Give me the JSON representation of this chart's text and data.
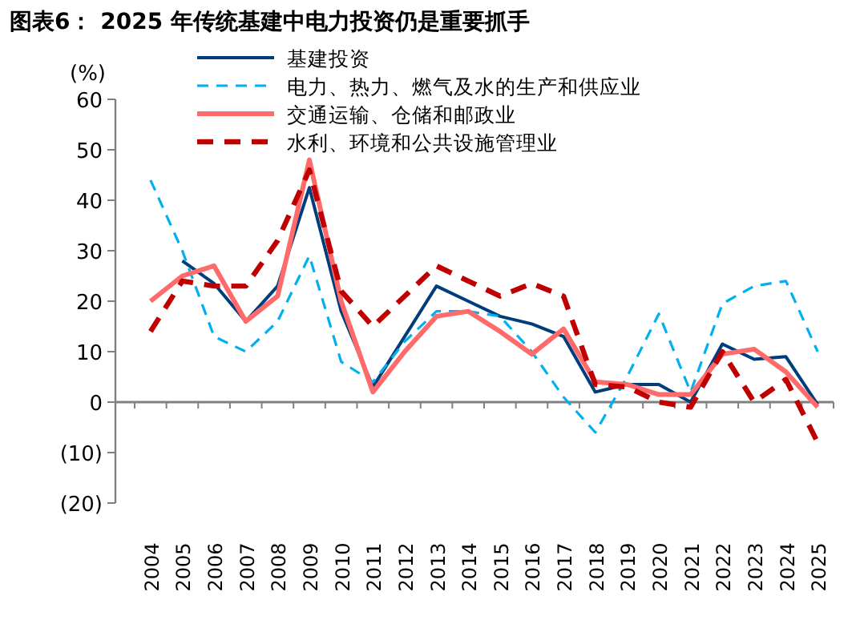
{
  "chart_data": {
    "type": "line",
    "title": "图表6： 2025 年传统基建中电力投资仍是重要抓手",
    "ylabel": "(%)",
    "categories": [
      "2004",
      "2005",
      "2006",
      "2007",
      "2008",
      "2009",
      "2010",
      "2011",
      "2012",
      "2013",
      "2014",
      "2015",
      "2016",
      "2017",
      "2018",
      "2019",
      "2020",
      "2021",
      "2022",
      "2023",
      "2024",
      "2025"
    ],
    "ylim": [
      -20,
      60
    ],
    "yticks": [
      {
        "value": -20,
        "label": "(20)"
      },
      {
        "value": -10,
        "label": "(10)"
      },
      0,
      10,
      20,
      30,
      40,
      50,
      60
    ],
    "legend": "top",
    "series": [
      {
        "name": "基建投资",
        "color": "#003d7c",
        "line_style": "solid",
        "values": [
          null,
          28,
          23.5,
          16,
          23,
          42.5,
          18,
          3,
          13,
          23,
          20,
          17,
          15.5,
          13,
          2,
          3.5,
          3.5,
          0,
          11.5,
          8.5,
          9,
          -0.5
        ]
      },
      {
        "name": "电力、热力、燃气及水的生产和供应业",
        "color": "#00b0f0",
        "line_style": "dashed",
        "values": [
          44,
          30,
          13,
          10,
          16,
          29,
          8,
          4,
          12,
          18,
          18,
          17,
          10,
          1,
          -6,
          5,
          17.5,
          2,
          19.5,
          23,
          24,
          10
        ]
      },
      {
        "name": "交通运输、仓储和邮政业",
        "color": "#ff6b6b",
        "line_style": "solid",
        "values": [
          20,
          25,
          27,
          16,
          21,
          48,
          20,
          2,
          10,
          17,
          18,
          14,
          9.5,
          14.5,
          4,
          3.5,
          1.5,
          1.5,
          9.5,
          10.5,
          6,
          -1
        ]
      },
      {
        "name": "水利、环境和公共设施管理业",
        "color": "#c00000",
        "line_style": "dashed",
        "values": [
          14,
          24,
          23,
          23,
          32,
          46,
          22,
          15,
          21,
          27,
          24,
          21,
          23.5,
          21,
          3.5,
          3,
          0,
          -1,
          10,
          0,
          4.5,
          -8
        ]
      }
    ]
  }
}
